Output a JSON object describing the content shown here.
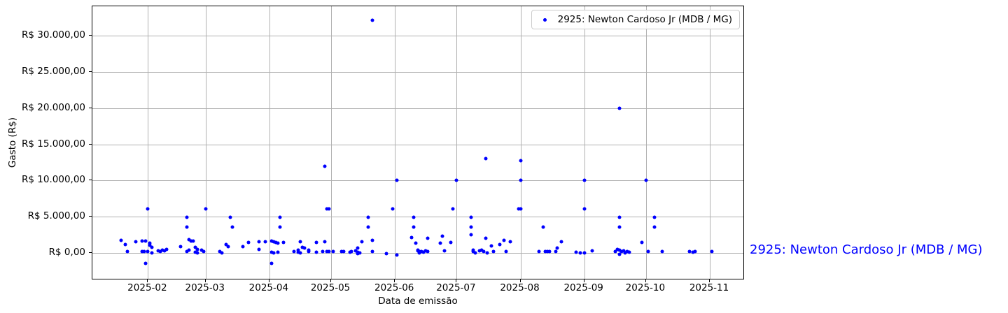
{
  "figure": {
    "side_label": {
      "text": "2925: Newton Cardoso Jr (MDB / MG)",
      "color": "#0000ff"
    },
    "colors": {
      "dot": "#0000ff",
      "grid": "#b0b0b0",
      "spine": "#000000",
      "legend_border": "#cccccc",
      "background": "#ffffff"
    }
  },
  "chart_data": {
    "type": "scatter",
    "title": "",
    "xlabel": "Data de emissão",
    "ylabel": "Gasto (R$)",
    "grid": true,
    "legend": {
      "label": "2925: Newton Cardoso Jr (MDB / MG)",
      "position": "upper right",
      "marker_color": "#0000ff"
    },
    "xlim": [
      "2025-01-05",
      "2025-11-18"
    ],
    "ylim": [
      -3800,
      34100
    ],
    "x_ticks": [
      {
        "date": "2025-02-01",
        "label": "2025-02"
      },
      {
        "date": "2025-03-01",
        "label": "2025-03"
      },
      {
        "date": "2025-04-01",
        "label": "2025-04"
      },
      {
        "date": "2025-05-01",
        "label": "2025-05"
      },
      {
        "date": "2025-06-01",
        "label": "2025-06"
      },
      {
        "date": "2025-07-01",
        "label": "2025-07"
      },
      {
        "date": "2025-08-01",
        "label": "2025-08"
      },
      {
        "date": "2025-09-01",
        "label": "2025-09"
      },
      {
        "date": "2025-10-01",
        "label": "2025-10"
      },
      {
        "date": "2025-11-01",
        "label": "2025-11"
      }
    ],
    "y_ticks": [
      {
        "value": 0,
        "label": "R$ 0,00"
      },
      {
        "value": 5000,
        "label": "R$ 5.000,00"
      },
      {
        "value": 10000,
        "label": "R$ 10.000,00"
      },
      {
        "value": 15000,
        "label": "R$ 15.000,00"
      },
      {
        "value": 20000,
        "label": "R$ 20.000,00"
      },
      {
        "value": 25000,
        "label": "R$ 25.000,00"
      },
      {
        "value": 30000,
        "label": "R$ 30.000,00"
      }
    ],
    "series": [
      {
        "name": "2925: Newton Cardoso Jr (MDB / MG)",
        "color": "#0000ff",
        "points": [
          [
            "2025-01-19",
            1700
          ],
          [
            "2025-01-21",
            1100
          ],
          [
            "2025-01-22",
            150
          ],
          [
            "2025-01-26",
            1500
          ],
          [
            "2025-01-29",
            1650
          ],
          [
            "2025-01-29",
            150
          ],
          [
            "2025-01-30",
            150
          ],
          [
            "2025-01-31",
            1650
          ],
          [
            "2025-01-31",
            -1500
          ],
          [
            "2025-02-01",
            6100
          ],
          [
            "2025-02-01",
            150
          ],
          [
            "2025-02-02",
            1300
          ],
          [
            "2025-02-02",
            1000
          ],
          [
            "2025-02-03",
            700
          ],
          [
            "2025-02-03",
            0
          ],
          [
            "2025-02-06",
            250
          ],
          [
            "2025-02-07",
            150
          ],
          [
            "2025-02-08",
            350
          ],
          [
            "2025-02-09",
            250
          ],
          [
            "2025-02-10",
            500
          ],
          [
            "2025-02-17",
            800
          ],
          [
            "2025-02-20",
            4900
          ],
          [
            "2025-02-20",
            3500
          ],
          [
            "2025-02-20",
            150
          ],
          [
            "2025-02-21",
            1800
          ],
          [
            "2025-02-21",
            350
          ],
          [
            "2025-02-22",
            1650
          ],
          [
            "2025-02-23",
            1650
          ],
          [
            "2025-02-24",
            750
          ],
          [
            "2025-02-24",
            50
          ],
          [
            "2025-02-25",
            500
          ],
          [
            "2025-02-25",
            0
          ],
          [
            "2025-02-27",
            400
          ],
          [
            "2025-02-28",
            150
          ],
          [
            "2025-03-01",
            6100
          ],
          [
            "2025-03-08",
            150
          ],
          [
            "2025-03-09",
            0
          ],
          [
            "2025-03-11",
            1100
          ],
          [
            "2025-03-12",
            800
          ],
          [
            "2025-03-13",
            4900
          ],
          [
            "2025-03-14",
            3500
          ],
          [
            "2025-03-19",
            800
          ],
          [
            "2025-03-22",
            1400
          ],
          [
            "2025-03-27",
            1550
          ],
          [
            "2025-03-27",
            500
          ],
          [
            "2025-03-30",
            1550
          ],
          [
            "2025-04-02",
            1650
          ],
          [
            "2025-04-02",
            100
          ],
          [
            "2025-04-02",
            -1500
          ],
          [
            "2025-04-03",
            1550
          ],
          [
            "2025-04-03",
            0
          ],
          [
            "2025-04-04",
            1450
          ],
          [
            "2025-04-05",
            1300
          ],
          [
            "2025-04-05",
            100
          ],
          [
            "2025-04-06",
            4900
          ],
          [
            "2025-04-06",
            3500
          ],
          [
            "2025-04-08",
            1450
          ],
          [
            "2025-04-13",
            150
          ],
          [
            "2025-04-15",
            350
          ],
          [
            "2025-04-15",
            100
          ],
          [
            "2025-04-16",
            1550
          ],
          [
            "2025-04-16",
            0
          ],
          [
            "2025-04-17",
            750
          ],
          [
            "2025-04-18",
            600
          ],
          [
            "2025-04-20",
            350
          ],
          [
            "2025-04-20",
            150
          ],
          [
            "2025-04-24",
            1400
          ],
          [
            "2025-04-24",
            100
          ],
          [
            "2025-04-27",
            150
          ],
          [
            "2025-04-28",
            12000
          ],
          [
            "2025-04-28",
            1500
          ],
          [
            "2025-04-29",
            6100
          ],
          [
            "2025-04-29",
            150
          ],
          [
            "2025-04-30",
            6100
          ],
          [
            "2025-04-30",
            200
          ],
          [
            "2025-05-02",
            150
          ],
          [
            "2025-05-06",
            150
          ],
          [
            "2025-05-07",
            150
          ],
          [
            "2025-05-10",
            100
          ],
          [
            "2025-05-11",
            150
          ],
          [
            "2025-05-13",
            300
          ],
          [
            "2025-05-14",
            600
          ],
          [
            "2025-05-14",
            100
          ],
          [
            "2025-05-14",
            -150
          ],
          [
            "2025-05-15",
            0
          ],
          [
            "2025-05-16",
            1500
          ],
          [
            "2025-05-19",
            4900
          ],
          [
            "2025-05-19",
            3500
          ],
          [
            "2025-05-21",
            32200
          ],
          [
            "2025-05-21",
            1700
          ],
          [
            "2025-05-21",
            150
          ],
          [
            "2025-05-28",
            -100
          ],
          [
            "2025-05-31",
            6100
          ],
          [
            "2025-06-02",
            10000
          ],
          [
            "2025-06-02",
            -300
          ],
          [
            "2025-06-09",
            2100
          ],
          [
            "2025-06-10",
            4900
          ],
          [
            "2025-06-10",
            3500
          ],
          [
            "2025-06-11",
            1300
          ],
          [
            "2025-06-12",
            400
          ],
          [
            "2025-06-12",
            250
          ],
          [
            "2025-06-13",
            150
          ],
          [
            "2025-06-13",
            0
          ],
          [
            "2025-06-14",
            150
          ],
          [
            "2025-06-15",
            100
          ],
          [
            "2025-06-16",
            250
          ],
          [
            "2025-06-17",
            2000
          ],
          [
            "2025-06-17",
            150
          ],
          [
            "2025-06-23",
            1300
          ],
          [
            "2025-06-24",
            2300
          ],
          [
            "2025-06-25",
            250
          ],
          [
            "2025-06-28",
            1400
          ],
          [
            "2025-06-29",
            6100
          ],
          [
            "2025-07-01",
            10000
          ],
          [
            "2025-07-08",
            4900
          ],
          [
            "2025-07-08",
            3500
          ],
          [
            "2025-07-08",
            2500
          ],
          [
            "2025-07-09",
            400
          ],
          [
            "2025-07-09",
            150
          ],
          [
            "2025-07-10",
            0
          ],
          [
            "2025-07-12",
            250
          ],
          [
            "2025-07-13",
            400
          ],
          [
            "2025-07-14",
            150
          ],
          [
            "2025-07-15",
            13000
          ],
          [
            "2025-07-15",
            2000
          ],
          [
            "2025-07-16",
            0
          ],
          [
            "2025-07-18",
            900
          ],
          [
            "2025-07-19",
            150
          ],
          [
            "2025-07-22",
            1100
          ],
          [
            "2025-07-24",
            1700
          ],
          [
            "2025-07-25",
            150
          ],
          [
            "2025-07-27",
            1500
          ],
          [
            "2025-07-31",
            6100
          ],
          [
            "2025-08-01",
            12700
          ],
          [
            "2025-08-01",
            10000
          ],
          [
            "2025-08-01",
            6100
          ],
          [
            "2025-08-10",
            150
          ],
          [
            "2025-08-12",
            3500
          ],
          [
            "2025-08-13",
            150
          ],
          [
            "2025-08-14",
            150
          ],
          [
            "2025-08-15",
            150
          ],
          [
            "2025-08-18",
            150
          ],
          [
            "2025-08-19",
            600
          ],
          [
            "2025-08-21",
            1500
          ],
          [
            "2025-08-28",
            100
          ],
          [
            "2025-08-30",
            0
          ],
          [
            "2025-09-01",
            10000
          ],
          [
            "2025-09-01",
            6100
          ],
          [
            "2025-09-01",
            0
          ],
          [
            "2025-09-05",
            250
          ],
          [
            "2025-09-16",
            150
          ],
          [
            "2025-09-17",
            500
          ],
          [
            "2025-09-18",
            20000
          ],
          [
            "2025-09-18",
            4900
          ],
          [
            "2025-09-18",
            3500
          ],
          [
            "2025-09-18",
            350
          ],
          [
            "2025-09-18",
            -200
          ],
          [
            "2025-09-19",
            150
          ],
          [
            "2025-09-20",
            250
          ],
          [
            "2025-09-21",
            0
          ],
          [
            "2025-09-22",
            150
          ],
          [
            "2025-09-23",
            100
          ],
          [
            "2025-09-29",
            1400
          ],
          [
            "2025-10-01",
            10000
          ],
          [
            "2025-10-02",
            150
          ],
          [
            "2025-10-05",
            4900
          ],
          [
            "2025-10-05",
            3500
          ],
          [
            "2025-10-09",
            150
          ],
          [
            "2025-10-22",
            150
          ],
          [
            "2025-10-24",
            100
          ],
          [
            "2025-10-25",
            200
          ],
          [
            "2025-11-02",
            150
          ]
        ]
      }
    ]
  }
}
